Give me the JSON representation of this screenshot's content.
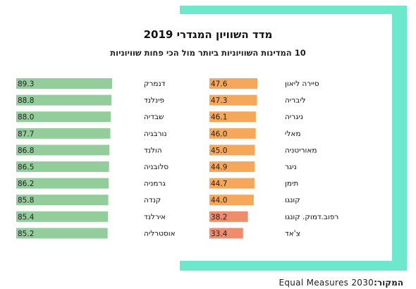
{
  "title": "מדד השוויון המגדרי 2019",
  "subtitle": "10 המדינות השוויוניות ביותר מול הכי פחות שוויוניות",
  "source": {
    "label": "המקור:",
    "name": "Equal Measures 2030"
  },
  "colors": {
    "top": "#93cd9c",
    "bottom_mid": "#f5a75a",
    "bottom_low": "#f08c6c",
    "frame": "#6ee8cc"
  },
  "chart_data": [
    {
      "type": "bar",
      "series": [
        {
          "categories": [
            "דנמרק",
            "פינלנד",
            "שבדיה",
            "נורבגיה",
            "הולנד",
            "סלובניה",
            "גרמניה",
            "קנדה",
            "אירלנד",
            "אוסטרליה"
          ],
          "values": [
            89.3,
            88.8,
            88.0,
            87.7,
            86.8,
            86.5,
            86.2,
            85.8,
            85.4,
            85.2
          ],
          "value_labels": [
            "89.3",
            "88.8",
            "88.0",
            "87.7",
            "86.8",
            "86.5",
            "86.2",
            "85.8",
            "85.4",
            "85.2"
          ]
        },
        {
          "categories": [
            "סיירה ליאון",
            "ליבריה",
            "ניגריה",
            "מאלי",
            "מאוריטניה",
            "ניגר",
            "תימן",
            "קונגו",
            "רפוב.דמוק. קונגו",
            "צ'אד"
          ],
          "values": [
            47.6,
            47.3,
            46.1,
            46.0,
            45.0,
            44.9,
            44.7,
            44.0,
            38.2,
            33.4
          ],
          "value_labels": [
            "47.6",
            "47.3",
            "46.1",
            "46.0",
            "45.0",
            "44.9",
            "44.7",
            "44.0",
            "38.2",
            "33.4"
          ]
        }
      ]
    }
  ]
}
